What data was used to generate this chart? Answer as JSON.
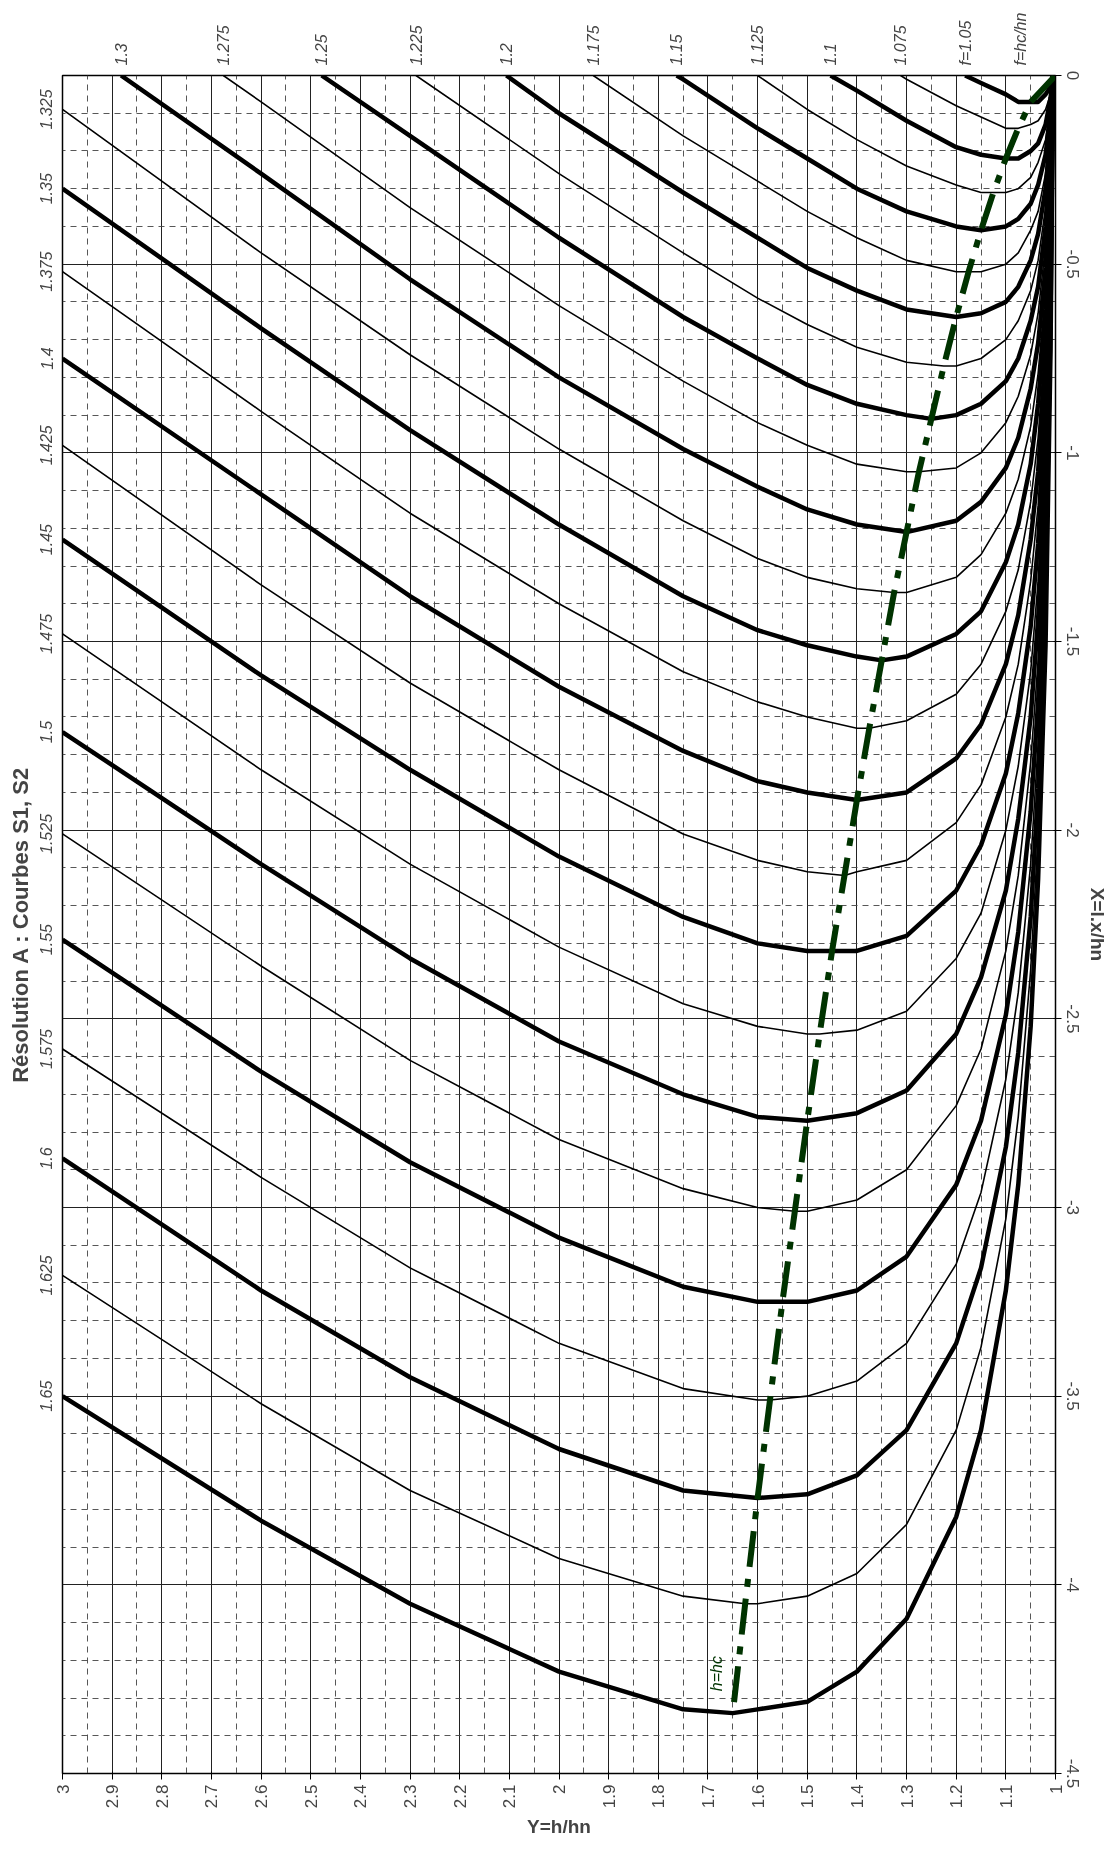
{
  "chart_data": {
    "type": "line",
    "title": "Résolution A : Courbes S1, S2",
    "xlabel": "Y=h/hn",
    "ylabel": "X=l.x/hn",
    "xlim": [
      3,
      1
    ],
    "ylim": [
      -4.5,
      0
    ],
    "xticks": [
      3,
      2.9,
      2.8,
      2.7,
      2.6,
      2.5,
      2.4,
      2.3,
      2.2,
      2.1,
      2,
      1.9,
      1.8,
      1.7,
      1.6,
      1.5,
      1.4,
      1.3,
      1.2,
      1.1,
      1
    ],
    "yticks": [
      0,
      -0.5,
      -1,
      -1.5,
      -2,
      -2.5,
      -3,
      -3.5,
      -4,
      -4.5
    ],
    "grid": true,
    "marker": "none",
    "line_style": "solid",
    "annotations": [
      "f=hc/hn"
    ],
    "series": [
      {
        "name": "f=1.05",
        "color": "#000000",
        "x": [
          1.005,
          1.01,
          1.02,
          1.035,
          1.05,
          1.075,
          1.1,
          1.15,
          1.182
        ],
        "values": [
          0,
          -0.03,
          -0.05,
          -0.07,
          -0.07,
          -0.07,
          -0.05,
          -0.02,
          0
        ]
      },
      {
        "name": "1.075",
        "color": "#000000",
        "x": [
          1.005,
          1.01,
          1.02,
          1.035,
          1.05,
          1.075,
          1.1,
          1.15,
          1.2,
          1.3,
          1.312
        ],
        "values": [
          0,
          -0.05,
          -0.09,
          -0.12,
          -0.13,
          -0.14,
          -0.14,
          -0.11,
          -0.08,
          -0.01,
          0
        ]
      },
      {
        "name": "1.1",
        "color": "#000000",
        "x": [
          1.005,
          1.01,
          1.02,
          1.035,
          1.05,
          1.075,
          1.1,
          1.15,
          1.2,
          1.3,
          1.4,
          1.453
        ],
        "values": [
          0,
          -0.06,
          -0.13,
          -0.18,
          -0.2,
          -0.22,
          -0.22,
          -0.21,
          -0.19,
          -0.12,
          -0.04,
          0
        ]
      },
      {
        "name": "1.125",
        "color": "#000000",
        "x": [
          1.005,
          1.01,
          1.02,
          1.035,
          1.05,
          1.075,
          1.1,
          1.125,
          1.15,
          1.2,
          1.3,
          1.4,
          1.5,
          1.6
        ],
        "values": [
          0,
          -0.08,
          -0.17,
          -0.23,
          -0.27,
          -0.3,
          -0.31,
          -0.31,
          -0.31,
          -0.29,
          -0.24,
          -0.17,
          -0.09,
          0
        ]
      },
      {
        "name": "1.15",
        "color": "#000000",
        "x": [
          1.005,
          1.01,
          1.02,
          1.035,
          1.05,
          1.075,
          1.1,
          1.15,
          1.2,
          1.3,
          1.4,
          1.5,
          1.6,
          1.75,
          1.763
        ],
        "values": [
          0,
          -0.1,
          -0.21,
          -0.29,
          -0.34,
          -0.38,
          -0.4,
          -0.41,
          -0.4,
          -0.36,
          -0.3,
          -0.22,
          -0.14,
          -0.01,
          0
        ]
      },
      {
        "name": "1.175",
        "color": "#000000",
        "x": [
          1.005,
          1.01,
          1.02,
          1.035,
          1.05,
          1.075,
          1.1,
          1.15,
          1.175,
          1.2,
          1.3,
          1.4,
          1.5,
          1.6,
          1.75,
          1.931
        ],
        "values": [
          0,
          -0.13,
          -0.26,
          -0.36,
          -0.41,
          -0.47,
          -0.5,
          -0.52,
          -0.52,
          -0.52,
          -0.49,
          -0.43,
          -0.36,
          -0.28,
          -0.16,
          0
        ]
      },
      {
        "name": "1.2",
        "color": "#000000",
        "x": [
          1.005,
          1.01,
          1.02,
          1.035,
          1.05,
          1.075,
          1.1,
          1.15,
          1.2,
          1.3,
          1.4,
          1.5,
          1.6,
          1.75,
          2,
          2.106
        ],
        "values": [
          0,
          -0.15,
          -0.3,
          -0.42,
          -0.49,
          -0.56,
          -0.6,
          -0.63,
          -0.64,
          -0.62,
          -0.57,
          -0.51,
          -0.43,
          -0.31,
          -0.1,
          0
        ]
      },
      {
        "name": "1.225",
        "color": "#000000",
        "x": [
          1.005,
          1.01,
          1.02,
          1.035,
          1.05,
          1.075,
          1.1,
          1.15,
          1.2,
          1.225,
          1.3,
          1.4,
          1.5,
          1.6,
          1.75,
          2,
          2.288
        ],
        "values": [
          0,
          -0.17,
          -0.35,
          -0.49,
          -0.57,
          -0.65,
          -0.7,
          -0.75,
          -0.77,
          -0.77,
          -0.76,
          -0.72,
          -0.66,
          -0.59,
          -0.47,
          -0.26,
          0
        ]
      },
      {
        "name": "1.25",
        "color": "#000000",
        "x": [
          1.005,
          1.01,
          1.02,
          1.035,
          1.05,
          1.075,
          1.1,
          1.15,
          1.2,
          1.25,
          1.3,
          1.4,
          1.5,
          1.6,
          1.75,
          2,
          2.3,
          2.478
        ],
        "values": [
          0,
          -0.2,
          -0.4,
          -0.56,
          -0.65,
          -0.75,
          -0.81,
          -0.87,
          -0.9,
          -0.91,
          -0.9,
          -0.87,
          -0.82,
          -0.75,
          -0.64,
          -0.43,
          -0.16,
          0
        ]
      },
      {
        "name": "1.275",
        "color": "#000000",
        "x": [
          1.005,
          1.01,
          1.02,
          1.035,
          1.05,
          1.075,
          1.1,
          1.15,
          1.2,
          1.275,
          1.3,
          1.4,
          1.5,
          1.6,
          1.75,
          2,
          2.3,
          2.6,
          2.676
        ],
        "values": [
          0,
          -0.22,
          -0.45,
          -0.63,
          -0.74,
          -0.85,
          -0.92,
          -1,
          -1.04,
          -1.05,
          -1.05,
          -1.03,
          -0.98,
          -0.92,
          -0.81,
          -0.61,
          -0.35,
          -0.07,
          0
        ]
      },
      {
        "name": "1.3",
        "color": "#000000",
        "x": [
          1.005,
          1.01,
          1.02,
          1.035,
          1.05,
          1.075,
          1.1,
          1.15,
          1.2,
          1.3,
          1.4,
          1.5,
          1.6,
          1.75,
          2,
          2.3,
          2.6,
          2.882
        ],
        "values": [
          0,
          -0.25,
          -0.51,
          -0.71,
          -0.83,
          -0.96,
          -1.04,
          -1.13,
          -1.18,
          -1.21,
          -1.19,
          -1.15,
          -1.09,
          -0.99,
          -0.8,
          -0.54,
          -0.26,
          0
        ]
      },
      {
        "name": "1.325",
        "color": "#000000",
        "x": [
          1.005,
          1.01,
          1.02,
          1.035,
          1.05,
          1.075,
          1.1,
          1.15,
          1.2,
          1.3,
          1.325,
          1.4,
          1.5,
          1.6,
          1.75,
          2,
          2.3,
          2.6,
          3
        ],
        "values": [
          0,
          -0.27,
          -0.57,
          -0.79,
          -0.93,
          -1.07,
          -1.16,
          -1.27,
          -1.33,
          -1.37,
          -1.37,
          -1.36,
          -1.33,
          -1.28,
          -1.18,
          -0.99,
          -0.74,
          -0.47,
          -0.09
        ]
      },
      {
        "name": "1.35",
        "color": "#000000",
        "x": [
          1.005,
          1.01,
          1.02,
          1.035,
          1.05,
          1.075,
          1.1,
          1.15,
          1.2,
          1.3,
          1.35,
          1.4,
          1.5,
          1.6,
          1.75,
          2,
          2.3,
          2.6,
          3
        ],
        "values": [
          0,
          -0.3,
          -0.62,
          -0.87,
          -1.03,
          -1.19,
          -1.29,
          -1.42,
          -1.48,
          -1.54,
          -1.55,
          -1.54,
          -1.51,
          -1.47,
          -1.38,
          -1.19,
          -0.94,
          -0.67,
          -0.3
        ]
      },
      {
        "name": "1.375",
        "color": "#000000",
        "x": [
          1.005,
          1.01,
          1.02,
          1.035,
          1.05,
          1.075,
          1.1,
          1.15,
          1.2,
          1.3,
          1.375,
          1.4,
          1.5,
          1.6,
          1.75,
          2,
          2.3,
          2.6,
          3
        ],
        "values": [
          0,
          -0.33,
          -0.69,
          -0.96,
          -1.13,
          -1.31,
          -1.42,
          -1.56,
          -1.64,
          -1.71,
          -1.73,
          -1.73,
          -1.7,
          -1.66,
          -1.58,
          -1.4,
          -1.16,
          -0.89,
          -0.52
        ]
      },
      {
        "name": "1.4",
        "color": "#000000",
        "x": [
          1.005,
          1.01,
          1.02,
          1.035,
          1.05,
          1.075,
          1.1,
          1.15,
          1.2,
          1.3,
          1.4,
          1.5,
          1.6,
          1.75,
          2,
          2.3,
          2.6,
          3
        ],
        "values": [
          0,
          -0.36,
          -0.75,
          -1.05,
          -1.23,
          -1.43,
          -1.56,
          -1.72,
          -1.81,
          -1.9,
          -1.92,
          -1.9,
          -1.87,
          -1.79,
          -1.62,
          -1.38,
          -1.11,
          -0.75
        ]
      },
      {
        "name": "1.425",
        "color": "#000000",
        "x": [
          1.005,
          1.01,
          1.02,
          1.035,
          1.05,
          1.075,
          1.1,
          1.15,
          1.2,
          1.3,
          1.4,
          1.425,
          1.5,
          1.6,
          1.75,
          2,
          2.3,
          2.6,
          3
        ],
        "values": [
          0,
          -0.39,
          -0.81,
          -1.14,
          -1.34,
          -1.56,
          -1.7,
          -1.88,
          -1.98,
          -2.08,
          -2.11,
          -2.12,
          -2.11,
          -2.08,
          -2.01,
          -1.84,
          -1.61,
          -1.35,
          -0.98
        ]
      },
      {
        "name": "1.45",
        "color": "#000000",
        "x": [
          1.005,
          1.01,
          1.02,
          1.035,
          1.05,
          1.075,
          1.1,
          1.15,
          1.2,
          1.3,
          1.4,
          1.45,
          1.5,
          1.6,
          1.75,
          2,
          2.3,
          2.6,
          3
        ],
        "values": [
          0,
          -0.43,
          -0.88,
          -1.24,
          -1.46,
          -1.69,
          -1.85,
          -2.04,
          -2.16,
          -2.28,
          -2.32,
          -2.32,
          -2.32,
          -2.3,
          -2.23,
          -2.07,
          -1.84,
          -1.59,
          -1.23
        ]
      },
      {
        "name": "1.475",
        "color": "#000000",
        "x": [
          1.005,
          1.01,
          1.02,
          1.035,
          1.05,
          1.075,
          1.1,
          1.15,
          1.2,
          1.3,
          1.4,
          1.475,
          1.5,
          1.6,
          1.75,
          2,
          2.3,
          2.6,
          3
        ],
        "values": [
          0,
          -0.46,
          -0.95,
          -1.34,
          -1.58,
          -1.83,
          -2,
          -2.22,
          -2.34,
          -2.48,
          -2.53,
          -2.54,
          -2.54,
          -2.52,
          -2.46,
          -2.31,
          -2.09,
          -1.84,
          -1.48
        ]
      },
      {
        "name": "1.5",
        "color": "#000000",
        "x": [
          1.005,
          1.01,
          1.02,
          1.035,
          1.05,
          1.075,
          1.1,
          1.15,
          1.2,
          1.3,
          1.4,
          1.5,
          1.6,
          1.75,
          2,
          2.3,
          2.6,
          3
        ],
        "values": [
          0,
          -0.49,
          -1.03,
          -1.44,
          -1.7,
          -1.97,
          -2.16,
          -2.39,
          -2.54,
          -2.69,
          -2.75,
          -2.77,
          -2.76,
          -2.7,
          -2.56,
          -2.34,
          -2.09,
          -1.74
        ]
      },
      {
        "name": "1.525",
        "color": "#000000",
        "x": [
          1.005,
          1.01,
          1.02,
          1.035,
          1.05,
          1.075,
          1.1,
          1.15,
          1.2,
          1.3,
          1.4,
          1.5,
          1.525,
          1.6,
          1.75,
          2,
          2.3,
          2.6,
          3
        ],
        "values": [
          0,
          -0.53,
          -1.1,
          -1.55,
          -1.82,
          -2.12,
          -2.32,
          -2.58,
          -2.73,
          -2.9,
          -2.98,
          -3.01,
          -3.01,
          -3,
          -2.95,
          -2.82,
          -2.61,
          -2.36,
          -2.01
        ]
      },
      {
        "name": "1.55",
        "color": "#000000",
        "x": [
          1.005,
          1.01,
          1.02,
          1.035,
          1.05,
          1.075,
          1.1,
          1.15,
          1.2,
          1.3,
          1.4,
          1.5,
          1.55,
          1.6,
          1.75,
          2,
          2.3,
          2.6,
          3
        ],
        "values": [
          0,
          -0.57,
          -1.18,
          -1.66,
          -1.95,
          -2.27,
          -2.49,
          -2.77,
          -2.94,
          -3.13,
          -3.22,
          -3.25,
          -3.25,
          -3.25,
          -3.21,
          -3.08,
          -2.88,
          -2.64,
          -2.29
        ]
      },
      {
        "name": "1.575",
        "color": "#000000",
        "x": [
          1.005,
          1.01,
          1.02,
          1.035,
          1.05,
          1.075,
          1.1,
          1.15,
          1.2,
          1.3,
          1.4,
          1.5,
          1.575,
          1.6,
          1.75,
          2,
          2.3,
          2.6,
          3
        ],
        "values": [
          0,
          -0.61,
          -1.26,
          -1.77,
          -2.09,
          -2.43,
          -2.66,
          -2.96,
          -3.15,
          -3.36,
          -3.46,
          -3.5,
          -3.51,
          -3.51,
          -3.48,
          -3.36,
          -3.16,
          -2.92,
          -2.58
        ]
      },
      {
        "name": "1.6",
        "color": "#000000",
        "x": [
          1.005,
          1.01,
          1.02,
          1.035,
          1.05,
          1.075,
          1.1,
          1.15,
          1.2,
          1.3,
          1.4,
          1.5,
          1.6,
          1.75,
          2,
          2.3,
          2.6,
          3
        ],
        "values": [
          0,
          -0.65,
          -1.34,
          -1.89,
          -2.23,
          -2.59,
          -2.84,
          -3.16,
          -3.36,
          -3.59,
          -3.71,
          -3.76,
          -3.77,
          -3.75,
          -3.64,
          -3.45,
          -3.22,
          -2.87
        ]
      },
      {
        "name": "1.625",
        "color": "#000000",
        "x": [
          1.005,
          1.01,
          1.02,
          1.035,
          1.05,
          1.075,
          1.1,
          1.15,
          1.2,
          1.3,
          1.4,
          1.5,
          1.6,
          1.625,
          1.75,
          2,
          2.3,
          2.6,
          3
        ],
        "values": [
          0,
          -0.69,
          -1.43,
          -2.01,
          -2.37,
          -2.76,
          -3.03,
          -3.37,
          -3.59,
          -3.84,
          -3.97,
          -4.03,
          -4.05,
          -4.05,
          -4.03,
          -3.93,
          -3.75,
          -3.52,
          -3.18
        ]
      },
      {
        "name": "1.65",
        "color": "#000000",
        "x": [
          1.005,
          1.01,
          1.02,
          1.035,
          1.05,
          1.075,
          1.1,
          1.15,
          1.2,
          1.3,
          1.4,
          1.5,
          1.6,
          1.65,
          1.75,
          2,
          2.3,
          2.6,
          3
        ],
        "values": [
          0,
          -0.73,
          -1.51,
          -2.13,
          -2.52,
          -2.94,
          -3.22,
          -3.59,
          -3.82,
          -4.09,
          -4.23,
          -4.31,
          -4.33,
          -4.34,
          -4.33,
          -4.23,
          -4.05,
          -3.83,
          -3.5
        ]
      },
      {
        "name": "h=hc",
        "color": "#003300",
        "line_style": "dashed",
        "x": [
          1,
          1.05,
          1.075,
          1.1,
          1.125,
          1.15,
          1.175,
          1.2,
          1.225,
          1.25,
          1.275,
          1.3,
          1.325,
          1.35,
          1.375,
          1.4,
          1.425,
          1.45,
          1.475,
          1.5,
          1.525,
          1.55,
          1.575,
          1.6,
          1.625,
          1.65
        ],
        "values": [
          0,
          -0.07,
          -0.14,
          -0.22,
          -0.31,
          -0.41,
          -0.52,
          -0.64,
          -0.77,
          -0.91,
          -1.05,
          -1.21,
          -1.37,
          -1.55,
          -1.73,
          -1.92,
          -2.12,
          -2.32,
          -2.54,
          -2.77,
          -3.01,
          -3.25,
          -3.51,
          -3.77,
          -4.05,
          -4.34
        ]
      }
    ]
  }
}
